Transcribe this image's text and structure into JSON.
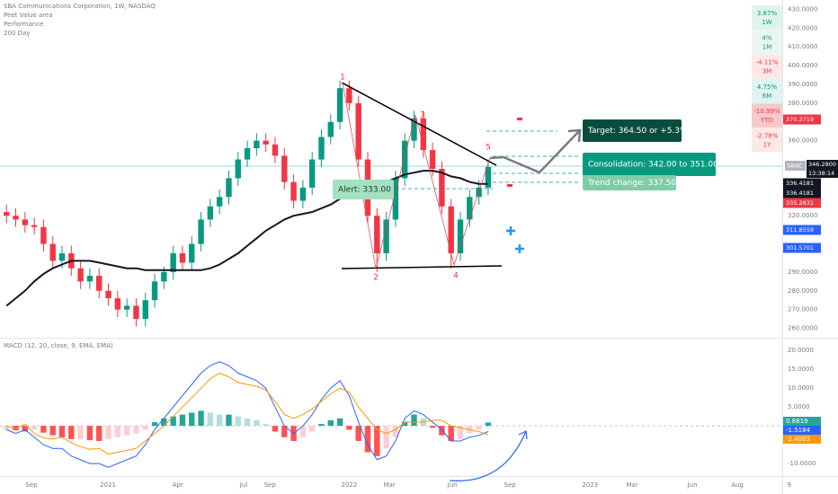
{
  "chart_data": [
    {
      "type": "candlestick",
      "title": "SBA Communications Corporation, 1W, NASDAQ",
      "legend_items": [
        "Peet Value area",
        "Performance"
      ],
      "x": [
        1,
        3,
        5,
        7,
        9,
        11,
        13,
        15,
        17,
        19,
        21,
        23,
        25,
        27,
        29,
        31,
        33,
        35,
        37,
        39,
        41,
        43,
        45,
        47,
        49,
        51,
        53,
        55,
        57,
        59,
        61,
        63,
        65,
        67,
        69,
        71,
        73,
        75,
        77,
        79,
        81,
        83,
        85,
        87,
        89,
        91,
        93,
        95,
        97,
        99,
        101,
        103,
        105
      ],
      "open": [
        322,
        320,
        318,
        315,
        314,
        305,
        296,
        300,
        292,
        285,
        288,
        280,
        276,
        270,
        272,
        265,
        275,
        285,
        290,
        300,
        295,
        305,
        318,
        325,
        330,
        340,
        350,
        356,
        360,
        358,
        352,
        338,
        328,
        335,
        350,
        362,
        370,
        388,
        380,
        350,
        320,
        300,
        318,
        340,
        360,
        372,
        355,
        345,
        325,
        300,
        318,
        330,
        335
      ],
      "high": [
        326,
        324,
        322,
        319,
        318,
        309,
        304,
        304,
        296,
        292,
        292,
        284,
        280,
        276,
        276,
        279,
        289,
        293,
        304,
        304,
        309,
        322,
        329,
        334,
        344,
        354,
        360,
        364,
        364,
        362,
        356,
        342,
        339,
        354,
        366,
        374,
        392,
        392,
        384,
        354,
        324,
        322,
        344,
        364,
        376,
        376,
        359,
        349,
        329,
        322,
        334,
        339,
        350
      ],
      "low": [
        316,
        314,
        311,
        310,
        301,
        292,
        292,
        288,
        281,
        281,
        276,
        272,
        266,
        266,
        261,
        261,
        271,
        281,
        286,
        291,
        291,
        301,
        314,
        321,
        326,
        336,
        346,
        352,
        354,
        348,
        334,
        324,
        324,
        331,
        346,
        358,
        366,
        376,
        346,
        316,
        290,
        296,
        314,
        336,
        356,
        351,
        341,
        321,
        292,
        296,
        314,
        326,
        331
      ],
      "close": [
        320,
        318,
        315,
        314,
        305,
        296,
        300,
        292,
        285,
        288,
        280,
        276,
        270,
        272,
        265,
        275,
        285,
        290,
        300,
        295,
        305,
        318,
        325,
        330,
        340,
        350,
        356,
        360,
        358,
        352,
        338,
        328,
        335,
        350,
        362,
        370,
        388,
        380,
        350,
        320,
        300,
        318,
        340,
        360,
        372,
        355,
        345,
        325,
        300,
        318,
        330,
        335,
        346
      ],
      "up_color": "#089981",
      "down_color": "#f23645",
      "series": [
        {
          "name": "200 Day",
          "color": "#131722",
          "values": [
            272,
            276,
            280,
            285,
            289,
            292,
            294,
            296,
            296,
            296,
            295,
            294,
            293,
            292,
            292,
            291,
            291,
            291,
            291,
            291,
            291,
            291,
            292,
            294,
            297,
            300,
            304,
            308,
            312,
            315,
            318,
            320,
            321,
            322,
            324,
            326,
            329,
            333,
            336,
            337,
            337,
            338,
            340,
            342,
            343,
            344,
            344,
            343,
            341,
            340,
            338,
            337,
            337
          ]
        }
      ],
      "ylim": [
        255,
        435
      ],
      "yticks": [
        {
          "value": 430,
          "label": "430.0000"
        },
        {
          "value": 420,
          "label": "420.0000"
        },
        {
          "value": 410,
          "label": "410.0000"
        },
        {
          "value": 400,
          "label": "400.0000"
        },
        {
          "value": 390,
          "label": "390.0000"
        },
        {
          "value": 380,
          "label": "380.0000"
        },
        {
          "value": 360,
          "label": "360.0000"
        },
        {
          "value": 320,
          "label": "320.0000"
        },
        {
          "value": 290,
          "label": "290.0000"
        },
        {
          "value": 280,
          "label": "280.0000"
        },
        {
          "value": 270,
          "label": "270.0000"
        },
        {
          "value": 260,
          "label": "260.0000"
        }
      ],
      "xlim": [
        -0.4,
        168.5
      ],
      "xticks": [
        {
          "value": 6.4,
          "label": "Sep"
        },
        {
          "value": 22.9,
          "label": "2021"
        },
        {
          "value": 38,
          "label": "Apr"
        },
        {
          "value": 52.2,
          "label": "Jul"
        },
        {
          "value": 57.9,
          "label": "Sep"
        },
        {
          "value": 75,
          "label": "2022"
        },
        {
          "value": 83.7,
          "label": "Mar"
        },
        {
          "value": 97.3,
          "label": "Jun"
        },
        {
          "value": 109.7,
          "label": "Sep"
        },
        {
          "value": 127,
          "label": "2023"
        },
        {
          "value": 136.1,
          "label": "Mar"
        },
        {
          "value": 149.1,
          "label": "Jun"
        },
        {
          "value": 158.8,
          "label": "Aug"
        },
        {
          "value": 170,
          "label": "9"
        }
      ],
      "wave_labels": [
        "1",
        "2",
        "3",
        "4",
        "5"
      ],
      "annotations": {
        "alert": "Alert: 333.00",
        "target": "Target: 364.50 or +5.3%",
        "consolidation": "Consolidation: 342.00 to 351.00",
        "trend": "Trend change: 337.50"
      },
      "symbol": "SBAC",
      "last_price": "346.2800",
      "countdown": "13:38:14",
      "price_labels": [
        "370.3719",
        "336.4181",
        "336.4181",
        "335.2831",
        "311.8559",
        "301.5701"
      ],
      "performance": [
        {
          "change": "3.87%",
          "period": "1W"
        },
        {
          "change": "4%",
          "period": "1M"
        },
        {
          "change": "-4.11%",
          "period": "3M"
        },
        {
          "change": "4.75%",
          "period": "6M"
        },
        {
          "change": "-10.99%",
          "period": "YTD"
        },
        {
          "change": "-2.78%",
          "period": "1Y"
        }
      ]
    },
    {
      "type": "macd",
      "title": "MACD (12, 20, close, 9, EMA, EMA)",
      "histogram": [
        -1,
        -1.2,
        -1.5,
        -1,
        -1.8,
        -2.5,
        -3,
        -3.5,
        -3.5,
        -3.8,
        -4,
        -3.5,
        -3,
        -2.5,
        -2,
        -1,
        1,
        2,
        2.5,
        3,
        3.5,
        4,
        3.5,
        3,
        3,
        2.5,
        2,
        1.5,
        0.5,
        -1.5,
        -3,
        -4,
        -3,
        -1.5,
        0.5,
        1.5,
        2,
        -1,
        -4,
        -7,
        -8,
        -6,
        -3,
        1,
        3,
        2,
        -0.5,
        -2.5,
        -4,
        -3.5,
        -2,
        -1,
        0.88
      ],
      "series": [
        {
          "color": "#2962ff",
          "values": [
            -1,
            -2,
            -1,
            -3,
            -5,
            -6,
            -6,
            -8,
            -9,
            -10,
            -10,
            -11,
            -10,
            -9,
            -8,
            -5,
            -1,
            2,
            5,
            8,
            11,
            14,
            16,
            17,
            16,
            14,
            13,
            12,
            10,
            5,
            0,
            -2,
            0,
            3,
            7,
            10,
            12,
            8,
            1,
            -5,
            -9,
            -8,
            -4,
            2,
            4,
            3,
            1,
            -1,
            -4,
            -4,
            -3,
            -2.5,
            -1.52
          ]
        },
        {
          "color": "#ff9800",
          "values": [
            0,
            -0.8,
            0.5,
            -2,
            -3.2,
            -3.5,
            -3,
            -4.5,
            -5.5,
            -6.2,
            -6,
            -7.5,
            -7,
            -6.5,
            -6,
            -4,
            -2,
            0,
            2.5,
            5,
            7.5,
            10,
            12.5,
            14,
            13,
            11.5,
            11,
            10.5,
            9.5,
            6.5,
            3,
            2,
            3,
            4.5,
            6.5,
            8.5,
            10,
            9,
            5,
            2,
            -1,
            -2,
            -1,
            1,
            1,
            1,
            1.5,
            1.5,
            0,
            -0.5,
            -1,
            -1.5,
            -2.4
          ]
        }
      ],
      "ylim": [
        -13.3,
        22.9
      ],
      "yticks": [
        {
          "value": 20,
          "label": "20.0000"
        },
        {
          "value": 15,
          "label": "15.0000"
        },
        {
          "value": 10,
          "label": "10.0000"
        },
        {
          "value": 5,
          "label": "5.0000"
        },
        {
          "value": -10,
          "label": "-10.0000"
        }
      ],
      "value_labels": [
        "0.8819",
        "-1.5184",
        "-2.4003"
      ]
    }
  ]
}
